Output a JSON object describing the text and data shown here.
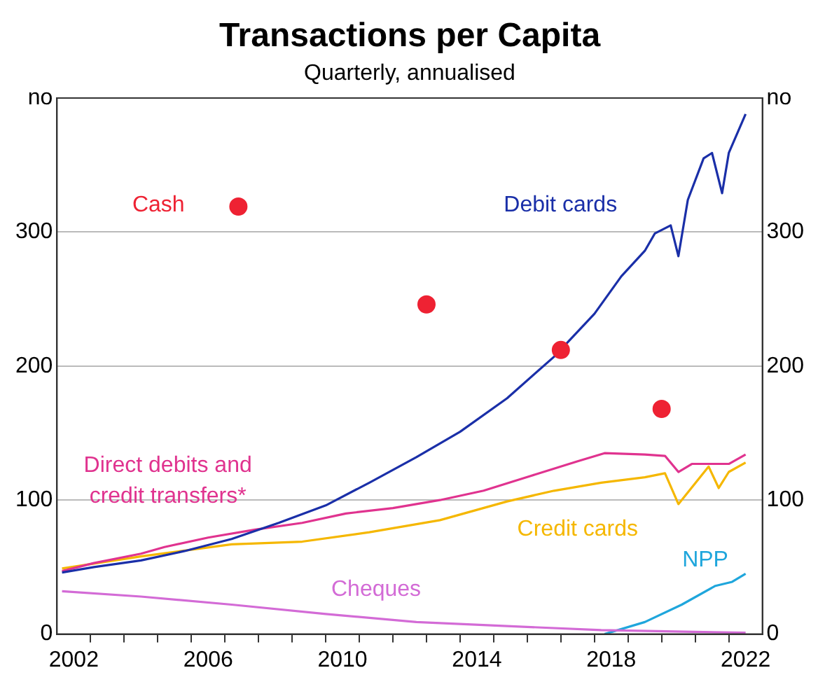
{
  "chart_data": {
    "type": "line",
    "title": "Transactions per Capita",
    "subtitle": "Quarterly, annualised",
    "xlim": [
      2002,
      2023
    ],
    "xticks": [
      {
        "value": 2002.5,
        "label": "2002"
      },
      {
        "value": 2003,
        "label": null
      },
      {
        "value": 2004,
        "label": null
      },
      {
        "value": 2005,
        "label": null
      },
      {
        "value": 2006,
        "label": null
      },
      {
        "value": 2006.5,
        "label": "2006"
      },
      {
        "value": 2007,
        "label": null
      },
      {
        "value": 2008,
        "label": null
      },
      {
        "value": 2009,
        "label": null
      },
      {
        "value": 2010,
        "label": null
      },
      {
        "value": 2010.5,
        "label": "2010"
      },
      {
        "value": 2011,
        "label": null
      },
      {
        "value": 2012,
        "label": null
      },
      {
        "value": 2013,
        "label": null
      },
      {
        "value": 2014,
        "label": null
      },
      {
        "value": 2014.5,
        "label": "2014"
      },
      {
        "value": 2015,
        "label": null
      },
      {
        "value": 2016,
        "label": null
      },
      {
        "value": 2017,
        "label": null
      },
      {
        "value": 2018,
        "label": null
      },
      {
        "value": 2018.5,
        "label": "2018"
      },
      {
        "value": 2019,
        "label": null
      },
      {
        "value": 2020,
        "label": null
      },
      {
        "value": 2021,
        "label": null
      },
      {
        "value": 2022,
        "label": null
      },
      {
        "value": 2022.5,
        "label": "2022"
      }
    ],
    "ylim": [
      0,
      400
    ],
    "yticks": [
      0,
      100,
      200,
      300,
      {
        "value": 400,
        "label": "no"
      }
    ],
    "y2lim": [
      0,
      400
    ],
    "y2ticks": [
      0,
      100,
      200,
      300,
      {
        "value": 400,
        "label": "no"
      }
    ],
    "grid": "y",
    "legend": false,
    "marker": "none",
    "line_style": "solid",
    "series": [
      {
        "name": "Cash",
        "type": "scatter",
        "marker": "circle",
        "color": "#ee2233",
        "x": [
          2007.4,
          2013.0,
          2017.0,
          2020.0
        ],
        "values": [
          319,
          246,
          212,
          168
        ]
      },
      {
        "name": "Debit cards",
        "color": "#1a2fa8",
        "x": [
          2002.15,
          2003.1,
          2004.5,
          2005.8,
          2007.2,
          2008.6,
          2010.0,
          2011.3,
          2012.7,
          2014.0,
          2015.4,
          2016.8,
          2018.0,
          2018.8,
          2019.5,
          2019.8,
          2020.27,
          2020.5,
          2020.78,
          2021.25,
          2021.5,
          2021.8,
          2022.0,
          2022.5
        ],
        "values": [
          46,
          50,
          55,
          62,
          71,
          83,
          96,
          113,
          132,
          151,
          176,
          207,
          239,
          267,
          286,
          299,
          305,
          282,
          324,
          355,
          359,
          329,
          359,
          388
        ]
      },
      {
        "name": "Direct debits and credit transfers*",
        "color": "#e0338f",
        "x": [
          2002.15,
          2003.1,
          2004.5,
          2005.2,
          2006.5,
          2007.9,
          2009.3,
          2010.6,
          2012.0,
          2013.4,
          2014.7,
          2016.1,
          2017.5,
          2018.3,
          2019.5,
          2020.1,
          2020.5,
          2020.9,
          2022.0,
          2022.5
        ],
        "values": [
          47,
          53,
          60,
          65,
          72,
          78,
          83,
          90,
          94,
          100,
          107,
          118,
          129,
          135,
          134,
          133,
          121,
          127,
          127,
          134
        ]
      },
      {
        "name": "Credit cards",
        "color": "#f5b700",
        "x": [
          2002.15,
          2004.5,
          2007.2,
          2009.3,
          2011.3,
          2013.4,
          2015.4,
          2016.8,
          2018.2,
          2019.5,
          2020.1,
          2020.5,
          2021.4,
          2021.7,
          2022.0,
          2022.5
        ],
        "values": [
          49,
          58,
          67,
          69,
          76,
          85,
          99,
          107,
          113,
          117,
          120,
          97,
          125,
          109,
          121,
          128
        ]
      },
      {
        "name": "Cheques",
        "color": "#d36bd6",
        "x": [
          2002.15,
          2004.5,
          2007.2,
          2010.0,
          2012.7,
          2015.4,
          2018.2,
          2022.5
        ],
        "values": [
          32,
          28,
          22,
          15,
          9,
          6,
          3,
          1
        ]
      },
      {
        "name": "NPP",
        "color": "#1fa6dc",
        "x": [
          2018.3,
          2019.5,
          2020.6,
          2021.6,
          2022.1,
          2022.5
        ],
        "values": [
          0,
          9,
          22,
          36,
          39,
          45
        ]
      }
    ]
  }
}
